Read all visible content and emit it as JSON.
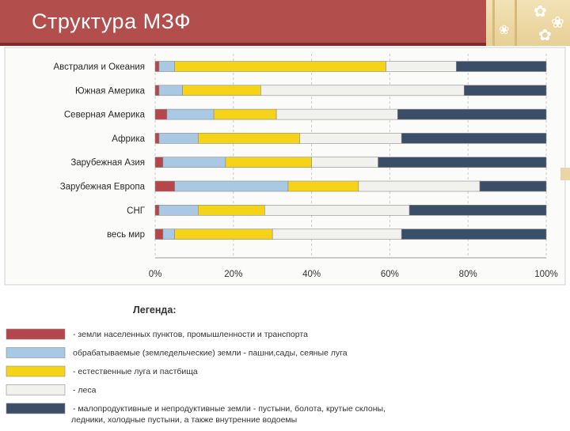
{
  "slide": {
    "title": "Структура МЗФ"
  },
  "legend": {
    "title": "Легенда:",
    "items": [
      {
        "label": "- земли населенных пунктов, промышленности и транспорта",
        "color": "#b5464b"
      },
      {
        "label": "обрабатываемые (земледельческие) земли - пашни,сады, сеяные луга",
        "color": "#a8c8e4"
      },
      {
        "label": "- естественные луга и пастбища",
        "color": "#f5d318"
      },
      {
        "label": "- леса",
        "color": "#f1f1ee"
      },
      {
        "label": "- малопродуктивные и непродуктивные земли - пустыни, болота, крутые склоны,",
        "label_line2": "ледники, холодные пустыни, а также внутренние водоемы",
        "color": "#3a4e68"
      }
    ]
  },
  "chart_data": {
    "type": "bar",
    "orientation": "horizontal",
    "stacked": true,
    "percent": true,
    "categories": [
      "Австралия и Океания",
      "Южная Америка",
      "Северная Америка",
      "Африка",
      "Зарубежная Азия",
      "Зарубежная Европа",
      "СНГ",
      "весь мир"
    ],
    "series": [
      {
        "color": "#b5464b",
        "values": [
          1,
          1,
          3,
          1,
          2,
          5,
          1,
          2
        ]
      },
      {
        "color": "#a8c8e4",
        "values": [
          4,
          6,
          12,
          10,
          16,
          29,
          10,
          3
        ]
      },
      {
        "color": "#f5d318",
        "values": [
          54,
          20,
          16,
          26,
          22,
          18,
          17,
          25
        ]
      },
      {
        "color": "#f1f1ee",
        "values": [
          18,
          52,
          31,
          26,
          17,
          31,
          37,
          33
        ]
      },
      {
        "color": "#3a4e68",
        "values": [
          23,
          21,
          38,
          37,
          43,
          17,
          35,
          37
        ]
      }
    ],
    "xlim": [
      0,
      100
    ],
    "xticks": [
      "0%",
      "20%",
      "40%",
      "60%",
      "80%",
      "100%"
    ],
    "grid": true
  }
}
